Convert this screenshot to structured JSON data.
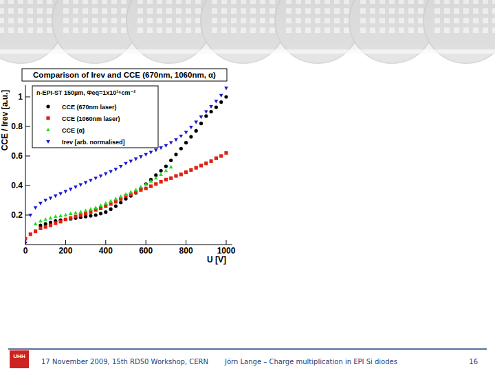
{
  "chart_data": {
    "type": "scatter",
    "title": "Comparison of Irev and CCE (670nm, 1060nm, α)",
    "subtitle": "n-EPI-ST 150µm, Φeq=1x10¹⁶cm⁻²",
    "x_label": "U [V]",
    "y_label": "CCE / Irev [a.u.]",
    "x": [
      0,
      25,
      50,
      75,
      100,
      125,
      150,
      175,
      200,
      225,
      250,
      275,
      300,
      325,
      350,
      375,
      400,
      425,
      450,
      475,
      500,
      525,
      550,
      575,
      600,
      625,
      650,
      675,
      700,
      725,
      750,
      775,
      800,
      825,
      850,
      875,
      900,
      925,
      950,
      975,
      1000
    ],
    "xlim": [
      0,
      1030
    ],
    "ylim": [
      0,
      1.08
    ],
    "xticks": [
      0,
      200,
      400,
      600,
      800,
      1000
    ],
    "yticks": [
      0.2,
      0.4,
      0.6,
      0.8,
      1
    ],
    "legend": "upper-left",
    "grid": false,
    "series": [
      {
        "name": "CCE (670nm laser)",
        "color": "#000000",
        "marker": "circle",
        "values": [
          null,
          null,
          null,
          0.13,
          0.14,
          0.15,
          0.16,
          0.165,
          0.17,
          0.175,
          0.18,
          0.185,
          0.19,
          0.195,
          0.2,
          0.21,
          0.22,
          0.24,
          0.26,
          0.285,
          0.31,
          0.33,
          0.35,
          0.38,
          0.41,
          0.44,
          0.47,
          0.5,
          0.53,
          0.57,
          0.61,
          0.65,
          0.69,
          0.73,
          0.77,
          0.82,
          0.87,
          0.9,
          0.93,
          0.965,
          1.0
        ]
      },
      {
        "name": "CCE (1060nm laser)",
        "color": "#dd2211",
        "marker": "square",
        "values": [
          0.04,
          0.07,
          0.09,
          0.11,
          0.12,
          0.13,
          0.145,
          0.155,
          0.17,
          0.18,
          0.19,
          0.2,
          0.21,
          0.22,
          0.235,
          0.245,
          0.26,
          0.275,
          0.29,
          0.31,
          0.33,
          0.34,
          0.355,
          0.37,
          0.38,
          0.395,
          0.41,
          0.425,
          0.44,
          0.45,
          0.465,
          0.475,
          0.49,
          0.505,
          0.52,
          0.535,
          0.55,
          0.565,
          0.585,
          0.6,
          0.62
        ]
      },
      {
        "name": "CCE (α)",
        "color": "#22dd22",
        "marker": "triangle-up",
        "values": [
          null,
          null,
          0.14,
          0.16,
          0.17,
          0.18,
          0.19,
          0.195,
          0.2,
          0.21,
          0.215,
          0.22,
          0.23,
          0.24,
          0.25,
          0.265,
          0.28,
          0.295,
          0.31,
          0.325,
          0.34,
          0.355,
          0.37,
          0.39,
          0.41,
          0.43,
          0.45,
          0.475,
          0.5,
          0.525,
          null,
          null,
          null,
          null,
          null,
          null,
          null,
          null,
          null,
          null,
          null
        ]
      },
      {
        "name": "Irev [arb. normalised]",
        "color": "#1a1acc",
        "marker": "triangle-down",
        "values": [
          0.01,
          0.2,
          0.25,
          0.28,
          0.3,
          0.315,
          0.33,
          0.345,
          0.36,
          0.375,
          0.39,
          0.405,
          0.42,
          0.435,
          0.45,
          0.465,
          0.48,
          0.495,
          0.51,
          0.53,
          0.55,
          0.565,
          0.58,
          0.595,
          0.61,
          0.625,
          0.64,
          0.655,
          0.67,
          0.69,
          0.71,
          0.735,
          0.76,
          0.795,
          0.83,
          0.865,
          0.9,
          0.935,
          0.97,
          1.01,
          1.06
        ]
      }
    ]
  },
  "footer": {
    "logo": "UHH",
    "event": "17 November 2009, 15th RD50 Workshop, CERN",
    "talk": "Jörn Lange – Charge multiplication in EPI Si diodes",
    "page": "16"
  }
}
